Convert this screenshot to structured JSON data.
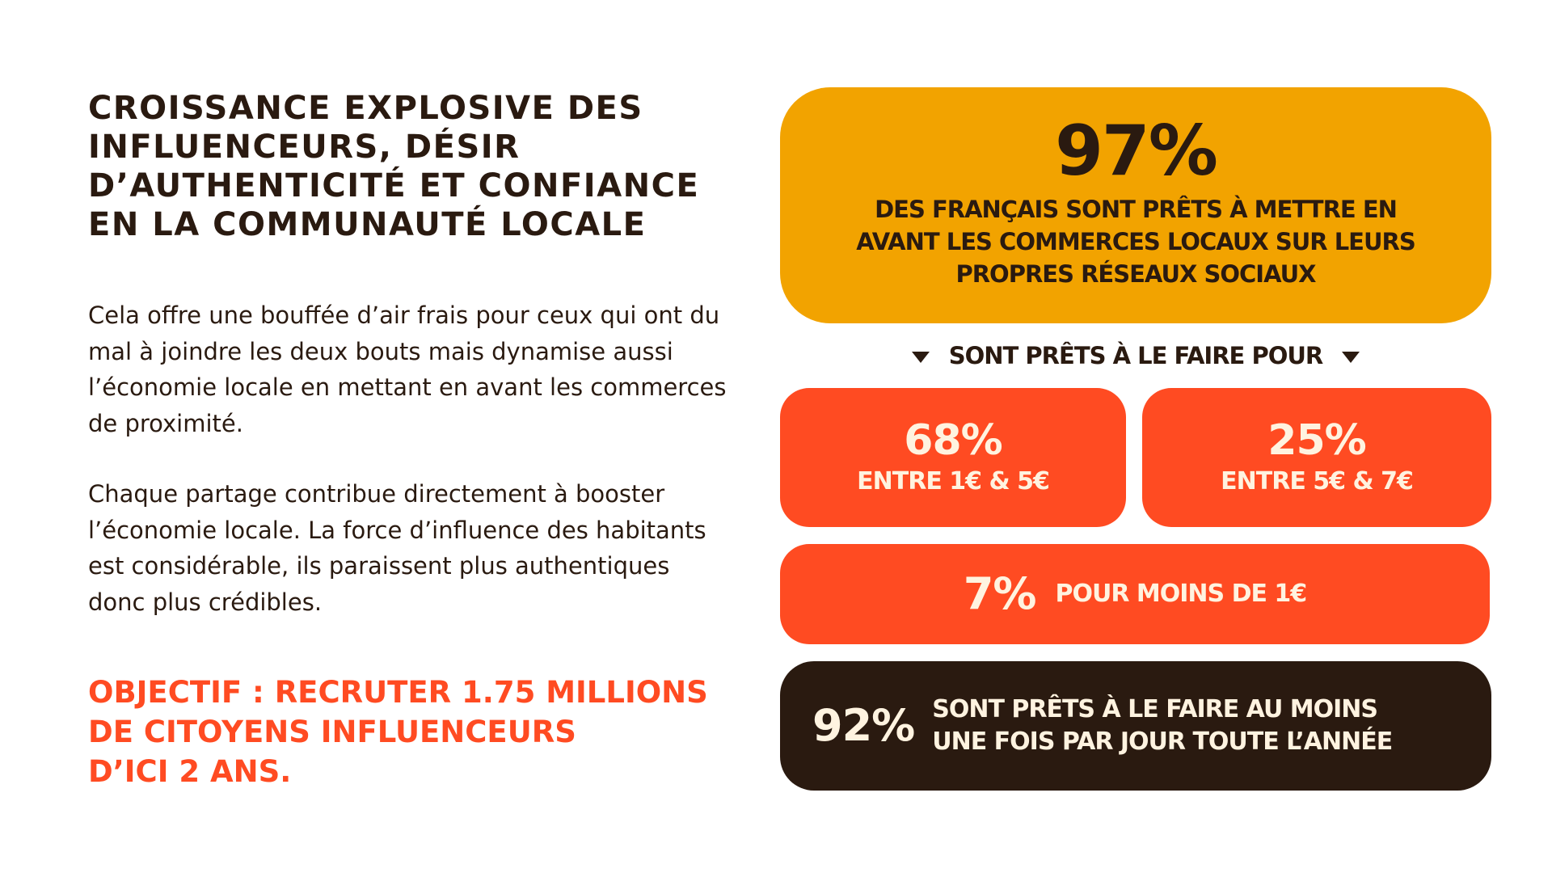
{
  "title_lines": [
    "CROISSANCE EXPLOSIVE DES",
    "INFLUENCEURS, DÉSIR",
    "D’AUTHENTICITÉ ET CONFIANCE",
    "EN LA COMMUNAUTÉ  LOCALE"
  ],
  "paragraph_1_lines": [
    "Cela offre une bouffée d’air frais pour ceux qui ont du",
    "mal à joindre les deux bouts mais dynamise aussi",
    "l’économie locale en mettant en avant les commerces",
    "de proximité."
  ],
  "paragraph_2_lines": [
    "Chaque partage contribue directement à booster",
    "l’économie locale. La force d’influence des habitants",
    "est considérable, ils paraissent plus authentiques",
    "donc plus crédibles."
  ],
  "objective_lines": [
    "OBJECTIF : RECRUTER 1.75 MILLIONS",
    "DE CITOYENS INFLUENCEURS",
    "D’ICI 2 ANS."
  ],
  "main_stat": {
    "value": "97%",
    "desc_lines": [
      "DES FRANÇAIS SONT PRÊTS À METTRE EN",
      "AVANT LES COMMERCES LOCAUX SUR LEURS",
      "PROPRES RÉSEAUX SOCIAUX"
    ]
  },
  "subheading": "SONT PRÊTS À LE FAIRE POUR",
  "stat_68": {
    "value": "68%",
    "label": "ENTRE 1€ & 5€"
  },
  "stat_25": {
    "value": "25%",
    "label": "ENTRE 5€ & 7€"
  },
  "stat_7": {
    "value": "7%",
    "label": "POUR MOINS DE 1€"
  },
  "stat_92": {
    "value": "92%",
    "label_lines": [
      "SONT PRÊTS À LE FAIRE AU MOINS",
      "UNE FOIS PAR JOUR TOUTE L’ANNÉE"
    ]
  },
  "colors": {
    "dark_brown": "#2a1a10",
    "amber": "#f2a300",
    "orange_red": "#ff4b22",
    "cream": "#fff3e0",
    "background": "#ffffff"
  },
  "icons": [
    "triangle-down-icon"
  ]
}
